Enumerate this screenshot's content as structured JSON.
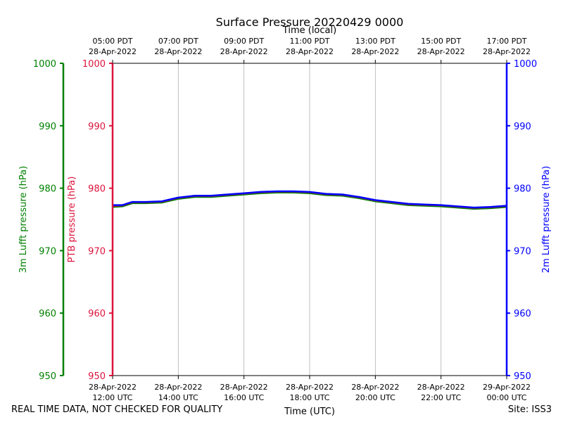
{
  "chart_data": {
    "type": "line",
    "title": "Surface Pressure 20220429 0000",
    "x_bottom": {
      "label": "Time (UTC)",
      "range_hours_utc": [
        12,
        24
      ],
      "ticks": [
        {
          "hour": 12,
          "date": "28-Apr-2022",
          "time": "12:00 UTC"
        },
        {
          "hour": 14,
          "date": "28-Apr-2022",
          "time": "14:00 UTC"
        },
        {
          "hour": 16,
          "date": "28-Apr-2022",
          "time": "16:00 UTC"
        },
        {
          "hour": 18,
          "date": "28-Apr-2022",
          "time": "18:00 UTC"
        },
        {
          "hour": 20,
          "date": "28-Apr-2022",
          "time": "20:00 UTC"
        },
        {
          "hour": 22,
          "date": "28-Apr-2022",
          "time": "22:00 UTC"
        },
        {
          "hour": 24,
          "date": "29-Apr-2022",
          "time": "00:00 UTC"
        }
      ]
    },
    "x_top": {
      "label": "Time (local)",
      "ticks": [
        {
          "hour": 12,
          "time": "05:00 PDT",
          "date": "28-Apr-2022"
        },
        {
          "hour": 14,
          "time": "07:00 PDT",
          "date": "28-Apr-2022"
        },
        {
          "hour": 16,
          "time": "09:00 PDT",
          "date": "28-Apr-2022"
        },
        {
          "hour": 18,
          "time": "11:00 PDT",
          "date": "28-Apr-2022"
        },
        {
          "hour": 20,
          "time": "13:00 PDT",
          "date": "28-Apr-2022"
        },
        {
          "hour": 22,
          "time": "15:00 PDT",
          "date": "28-Apr-2022"
        },
        {
          "hour": 24,
          "time": "17:00 PDT",
          "date": "28-Apr-2022"
        }
      ]
    },
    "y_axes": [
      {
        "id": "lufft3m",
        "label": "3m Lufft pressure (hPa)",
        "color": "#008000",
        "ylim": [
          950,
          1000
        ],
        "ticks": [
          950,
          960,
          970,
          980,
          990,
          1000
        ]
      },
      {
        "id": "ptb",
        "label": "PTB pressure (hPa)",
        "color": "#dc143c",
        "ylim": [
          950,
          1000
        ],
        "ticks": [
          950,
          960,
          970,
          980,
          990,
          1000
        ]
      },
      {
        "id": "lufft2m",
        "label": "2m Lufft pressure (hPa)",
        "color": "#0000ff",
        "ylim": [
          950,
          1000
        ],
        "ticks": [
          950,
          960,
          970,
          980,
          990,
          1000
        ]
      }
    ],
    "grid": "vertical",
    "series": [
      {
        "name": "3m Lufft pressure",
        "color": "#008000",
        "x": [
          12.0,
          12.3,
          12.6,
          13.0,
          13.5,
          14.0,
          14.5,
          15.0,
          15.5,
          16.0,
          16.5,
          17.0,
          17.5,
          18.0,
          18.5,
          19.0,
          19.5,
          20.0,
          20.5,
          21.0,
          21.5,
          22.0,
          22.5,
          23.0,
          23.5,
          24.0
        ],
        "values": [
          977.0,
          977.1,
          977.6,
          977.6,
          977.7,
          978.3,
          978.6,
          978.6,
          978.8,
          979.0,
          979.2,
          979.3,
          979.3,
          979.2,
          978.9,
          978.8,
          978.4,
          977.9,
          977.6,
          977.3,
          977.2,
          977.1,
          976.9,
          976.7,
          976.8,
          977.0
        ]
      },
      {
        "name": "PTB pressure",
        "color": "#dc143c",
        "x": [
          12.0,
          12.3,
          12.6,
          13.0,
          13.5,
          14.0,
          14.5,
          15.0,
          15.5,
          16.0,
          16.5,
          17.0,
          17.5,
          18.0,
          18.5,
          19.0,
          19.5,
          20.0,
          20.5,
          21.0,
          21.5,
          22.0,
          22.5,
          23.0,
          23.5,
          24.0
        ],
        "values": [
          977.1,
          977.2,
          977.7,
          977.7,
          977.8,
          978.4,
          978.7,
          978.7,
          978.9,
          979.1,
          979.3,
          979.4,
          979.4,
          979.3,
          979.0,
          978.9,
          978.5,
          978.0,
          977.7,
          977.4,
          977.3,
          977.2,
          977.0,
          976.8,
          976.9,
          977.1
        ]
      },
      {
        "name": "2m Lufft pressure",
        "color": "#0000ff",
        "x": [
          12.0,
          12.3,
          12.6,
          13.0,
          13.5,
          14.0,
          14.5,
          15.0,
          15.5,
          16.0,
          16.5,
          17.0,
          17.5,
          18.0,
          18.5,
          19.0,
          19.5,
          20.0,
          20.5,
          21.0,
          21.5,
          22.0,
          22.5,
          23.0,
          23.5,
          24.0
        ],
        "values": [
          977.3,
          977.3,
          977.8,
          977.8,
          977.9,
          978.5,
          978.8,
          978.8,
          979.0,
          979.2,
          979.4,
          979.5,
          979.5,
          979.4,
          979.1,
          979.0,
          978.6,
          978.1,
          977.8,
          977.5,
          977.4,
          977.3,
          977.1,
          976.9,
          977.0,
          977.2
        ]
      }
    ]
  },
  "footer": {
    "disclaimer": "REAL TIME DATA, NOT CHECKED FOR QUALITY",
    "site": "Site: ISS3"
  }
}
